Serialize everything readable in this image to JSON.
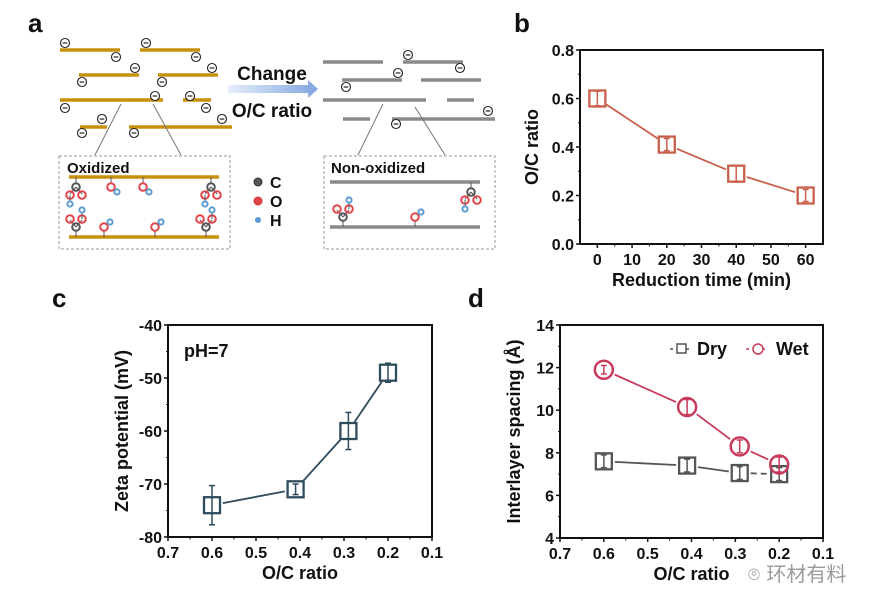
{
  "panels": {
    "a": {
      "label": "a",
      "arrow_text_line1": "Change",
      "arrow_text_line2": "O/C ratio",
      "oxidized_title": "Oxidized",
      "nonoxidized_title": "Non-oxidized",
      "charge_symbol": "⊖",
      "legend": [
        {
          "label": "C",
          "color": "#555555"
        },
        {
          "label": "O",
          "color": "#e0474c"
        },
        {
          "label": "H",
          "color": "#5b9bd5"
        }
      ],
      "colors": {
        "oxidized_sheet": "#c8900a",
        "reduced_sheet": "#8a8a8a",
        "arrow": "#7fa6e0"
      }
    },
    "b": {
      "label": "b"
    },
    "c": {
      "label": "c"
    },
    "d": {
      "label": "d"
    }
  },
  "watermark": "环材有料",
  "chart_data": [
    {
      "id": "b",
      "type": "line",
      "title": "",
      "xlabel": "Reduction time (min)",
      "ylabel": "O/C ratio",
      "xlim": [
        -5,
        65
      ],
      "ylim": [
        0.0,
        0.8
      ],
      "xticks": [
        0,
        10,
        20,
        30,
        40,
        50,
        60
      ],
      "yticks": [
        "0.0",
        "0.2",
        "0.4",
        "0.6",
        "0.8"
      ],
      "grid": false,
      "series": [
        {
          "name": "O/C ratio",
          "marker": "square",
          "color": "#c8604c",
          "x": [
            0,
            20,
            40,
            60
          ],
          "y": [
            0.6,
            0.41,
            0.29,
            0.2
          ],
          "yerr": [
            0.03,
            0.025,
            0.035,
            0.025
          ]
        }
      ]
    },
    {
      "id": "c",
      "type": "line",
      "title": "",
      "annotation": "pH=7",
      "xlabel": "O/C ratio",
      "ylabel": "Zeta potential (mV)",
      "xlim": [
        0.7,
        0.1
      ],
      "ylim": [
        -80,
        -40
      ],
      "xticks": [
        "0.7",
        "0.6",
        "0.5",
        "0.4",
        "0.3",
        "0.2",
        "0.1"
      ],
      "yticks": [
        "-80",
        "-70",
        "-60",
        "-50",
        "-40"
      ],
      "grid": false,
      "series": [
        {
          "name": "Zeta potential",
          "marker": "square",
          "color": "#2f4b5c",
          "x": [
            0.6,
            0.41,
            0.29,
            0.2
          ],
          "y": [
            -74,
            -71,
            -60,
            -49
          ],
          "yerr": [
            3.7,
            1.0,
            3.5,
            1.8
          ]
        }
      ]
    },
    {
      "id": "d",
      "type": "line",
      "title": "",
      "xlabel": "O/C ratio",
      "ylabel": "Interlayer spacing (Å)",
      "xlim": [
        0.7,
        0.1
      ],
      "ylim": [
        4,
        14
      ],
      "xticks": [
        "0.7",
        "0.6",
        "0.5",
        "0.4",
        "0.3",
        "0.2",
        "0.1"
      ],
      "yticks": [
        "4",
        "6",
        "8",
        "10",
        "12",
        "14"
      ],
      "grid": false,
      "legend_position": "top-right",
      "series": [
        {
          "name": "Dry",
          "marker": "square",
          "color": "#555555",
          "x": [
            0.6,
            0.41,
            0.29,
            0.2
          ],
          "y": [
            7.6,
            7.4,
            7.05,
            7.0
          ],
          "yerr": [
            0.3,
            0.3,
            0.3,
            0.3
          ]
        },
        {
          "name": "Wet",
          "marker": "circle",
          "color": "#c73b5b",
          "x": [
            0.6,
            0.41,
            0.29,
            0.2
          ],
          "y": [
            11.9,
            10.15,
            8.3,
            7.45
          ],
          "yerr": [
            0.2,
            0.35,
            0.3,
            0.35
          ]
        }
      ]
    }
  ]
}
